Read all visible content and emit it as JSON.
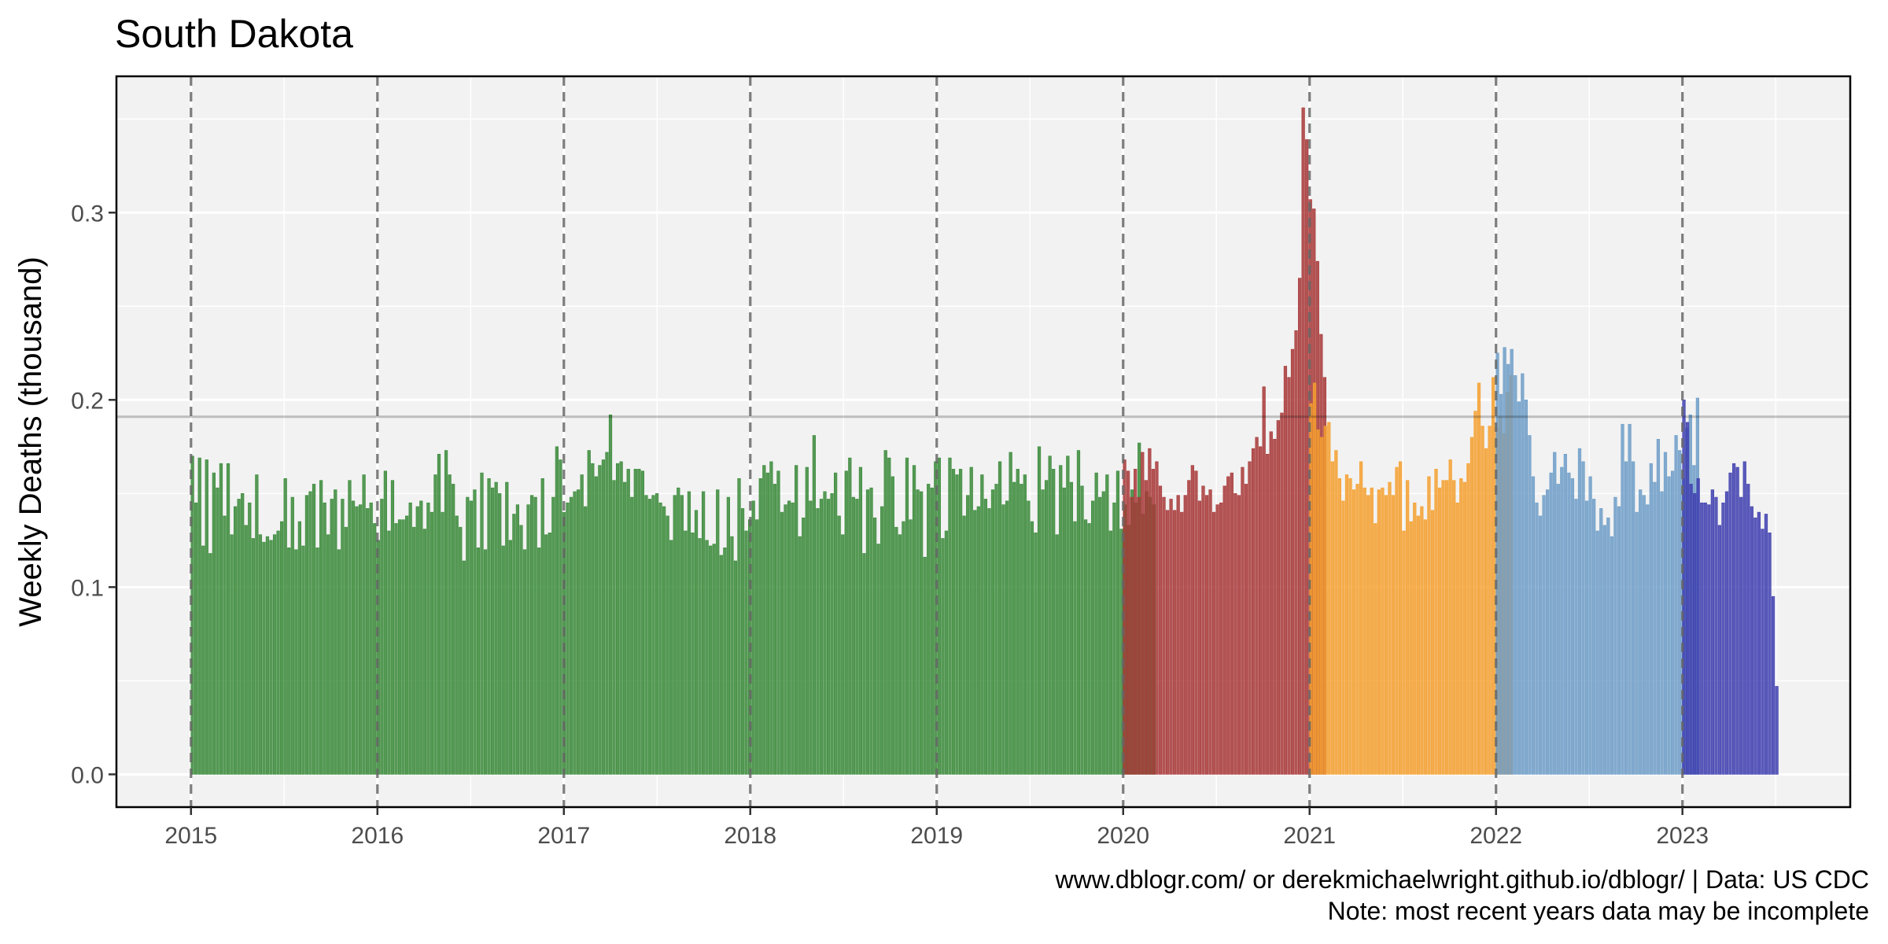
{
  "chart_data": {
    "type": "bar",
    "title": "South Dakota",
    "ylabel": "Weekly Deaths (thousand)",
    "xlabel": "",
    "ylim": [
      -0.0175,
      0.3728
    ],
    "xlim": [
      2014.6,
      2023.9
    ],
    "grid": true,
    "x_ticks": [
      "2015",
      "2016",
      "2017",
      "2018",
      "2019",
      "2020",
      "2021",
      "2022",
      "2023"
    ],
    "y_ticks": [
      "0.0",
      "0.1",
      "0.2",
      "0.3"
    ],
    "y_tick_values": [
      0.0,
      0.1,
      0.2,
      0.3
    ],
    "reference_line": 0.191,
    "year_dividers": [
      2015,
      2016,
      2017,
      2018,
      2019,
      2020,
      2021,
      2022,
      2023
    ],
    "series": [
      {
        "period": "2015-2019",
        "color": "#3a8a3a",
        "start_year": 2015,
        "values": [
          0.17,
          0.145,
          0.169,
          0.122,
          0.168,
          0.118,
          0.161,
          0.153,
          0.166,
          0.138,
          0.166,
          0.128,
          0.143,
          0.147,
          0.15,
          0.133,
          0.145,
          0.126,
          0.16,
          0.128,
          0.124,
          0.127,
          0.125,
          0.128,
          0.13,
          0.135,
          0.158,
          0.121,
          0.148,
          0.12,
          0.135,
          0.122,
          0.149,
          0.151,
          0.155,
          0.121,
          0.157,
          0.145,
          0.128,
          0.147,
          0.152,
          0.12,
          0.147,
          0.132,
          0.157,
          0.146,
          0.143,
          0.144,
          0.16,
          0.142,
          0.145,
          0.134,
          0.125,
          0.147,
          0.162,
          0.13,
          0.157,
          0.134,
          0.136,
          0.136,
          0.138,
          0.145,
          0.132,
          0.143,
          0.146,
          0.131,
          0.145,
          0.14,
          0.16,
          0.171,
          0.14,
          0.173,
          0.16,
          0.155,
          0.138,
          0.132,
          0.114,
          0.148,
          0.146,
          0.152,
          0.121,
          0.161,
          0.12,
          0.158,
          0.153,
          0.156,
          0.15,
          0.122,
          0.156,
          0.125,
          0.139,
          0.144,
          0.133,
          0.12,
          0.144,
          0.149,
          0.148,
          0.121,
          0.158,
          0.128,
          0.129,
          0.148,
          0.175,
          0.168,
          0.14,
          0.145,
          0.148,
          0.151,
          0.152,
          0.16,
          0.143,
          0.173,
          0.166,
          0.159,
          0.165,
          0.168,
          0.172,
          0.192,
          0.157,
          0.166,
          0.167,
          0.156,
          0.163,
          0.148,
          0.163,
          0.163,
          0.162,
          0.149,
          0.147,
          0.149,
          0.15,
          0.145,
          0.143,
          0.138,
          0.125,
          0.149,
          0.153,
          0.149,
          0.13,
          0.151,
          0.129,
          0.141,
          0.126,
          0.151,
          0.125,
          0.122,
          0.123,
          0.152,
          0.117,
          0.121,
          0.148,
          0.127,
          0.114,
          0.158,
          0.142,
          0.13,
          0.136,
          0.146,
          0.136,
          0.158,
          0.165,
          0.161,
          0.167,
          0.155,
          0.162,
          0.14,
          0.144,
          0.146,
          0.145,
          0.165,
          0.127,
          0.137,
          0.164,
          0.146,
          0.181,
          0.142,
          0.147,
          0.151,
          0.147,
          0.15,
          0.161,
          0.138,
          0.128,
          0.162,
          0.169,
          0.148,
          0.147,
          0.164,
          0.118,
          0.152,
          0.153,
          0.137,
          0.123,
          0.143,
          0.173,
          0.169,
          0.159,
          0.132,
          0.128,
          0.135,
          0.169,
          0.136,
          0.165,
          0.152,
          0.151,
          0.116,
          0.155,
          0.153,
          0.167,
          0.169,
          0.126,
          0.13,
          0.169,
          0.163,
          0.16,
          0.163,
          0.138,
          0.149,
          0.164,
          0.141,
          0.143,
          0.16,
          0.147,
          0.142,
          0.152,
          0.155,
          0.167,
          0.144,
          0.146,
          0.172,
          0.156,
          0.163,
          0.155,
          0.16,
          0.146,
          0.135,
          0.129,
          0.175,
          0.152,
          0.157,
          0.17,
          0.163,
          0.128,
          0.165,
          0.153,
          0.17,
          0.156,
          0.135,
          0.173,
          0.154,
          0.136,
          0.134,
          0.146,
          0.161,
          0.148,
          0.151,
          0.16,
          0.13,
          0.145,
          0.162,
          0.131,
          0.144,
          0.133,
          0.152,
          0.145,
          0.177,
          0.139,
          0.151,
          0.148,
          0.144
        ]
      },
      {
        "period": "2020",
        "color": "#a83838",
        "start_year": 2020,
        "values": [
          0.168,
          0.162,
          0.148,
          0.163,
          0.148,
          0.172,
          0.157,
          0.174,
          0.163,
          0.167,
          0.154,
          0.148,
          0.141,
          0.147,
          0.141,
          0.149,
          0.14,
          0.149,
          0.157,
          0.165,
          0.162,
          0.146,
          0.154,
          0.149,
          0.152,
          0.14,
          0.144,
          0.145,
          0.154,
          0.159,
          0.161,
          0.15,
          0.149,
          0.164,
          0.155,
          0.167,
          0.174,
          0.18,
          0.175,
          0.207,
          0.171,
          0.183,
          0.179,
          0.189,
          0.193,
          0.218,
          0.212,
          0.227,
          0.237,
          0.265,
          0.356,
          0.339,
          0.307,
          0.302,
          0.274,
          0.235,
          0.212
        ]
      },
      {
        "period": "2021",
        "color": "#f5a030",
        "start_year": 2021,
        "values": [
          0.198,
          0.209,
          0.184,
          0.18,
          0.186,
          0.188,
          0.167,
          0.173,
          0.158,
          0.146,
          0.16,
          0.158,
          0.152,
          0.155,
          0.167,
          0.153,
          0.149,
          0.153,
          0.134,
          0.152,
          0.153,
          0.149,
          0.156,
          0.149,
          0.164,
          0.167,
          0.13,
          0.157,
          0.135,
          0.145,
          0.138,
          0.143,
          0.136,
          0.159,
          0.141,
          0.163,
          0.153,
          0.157,
          0.157,
          0.168,
          0.157,
          0.145,
          0.158,
          0.156,
          0.166,
          0.18,
          0.194,
          0.209,
          0.186,
          0.174,
          0.186,
          0.212,
          0.185,
          0.191,
          0.182,
          0.204,
          0.213
        ]
      },
      {
        "period": "2022",
        "color": "#6f9ec8",
        "start_year": 2022,
        "values": [
          0.225,
          0.203,
          0.228,
          0.219,
          0.227,
          0.213,
          0.199,
          0.214,
          0.2,
          0.181,
          0.159,
          0.145,
          0.138,
          0.149,
          0.152,
          0.161,
          0.172,
          0.155,
          0.164,
          0.171,
          0.161,
          0.158,
          0.147,
          0.174,
          0.167,
          0.146,
          0.159,
          0.147,
          0.13,
          0.142,
          0.133,
          0.137,
          0.127,
          0.148,
          0.143,
          0.187,
          0.167,
          0.187,
          0.167,
          0.14,
          0.152,
          0.149,
          0.144,
          0.166,
          0.156,
          0.179,
          0.151,
          0.172,
          0.159,
          0.162,
          0.181,
          0.173,
          0.158,
          0.185,
          0.192,
          0.165,
          0.201
        ]
      },
      {
        "period": "2023",
        "color": "#3f3fb0",
        "start_year": 2023,
        "values": [
          0.2,
          0.188,
          0.155,
          0.15,
          0.158,
          0.145,
          0.145,
          0.144,
          0.152,
          0.148,
          0.133,
          0.145,
          0.151,
          0.161,
          0.166,
          0.164,
          0.148,
          0.167,
          0.155,
          0.143,
          0.137,
          0.14,
          0.131,
          0.139,
          0.129,
          0.095,
          0.047
        ]
      }
    ]
  },
  "caption": {
    "line1": "www.dblogr.com/ or derekmichaelwright.github.io/dblogr/ | Data: US CDC",
    "line2": "Note: most recent years data may be incomplete"
  }
}
